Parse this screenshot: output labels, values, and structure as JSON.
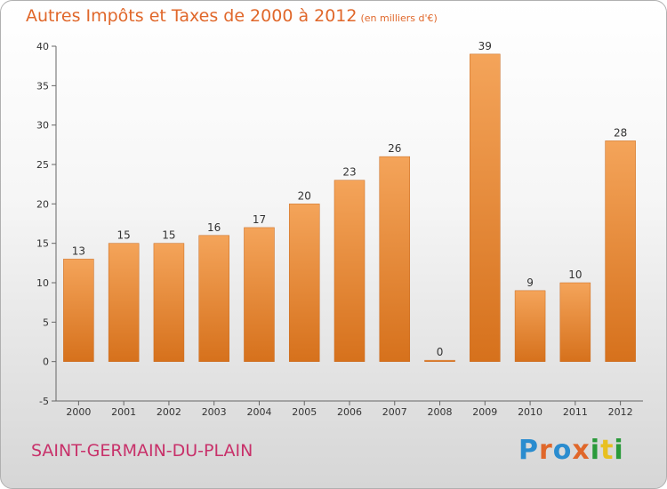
{
  "title": "Autres Impôts et Taxes de 2000 à 2012",
  "title_unit": "(en milliers d'€)",
  "city": "SAINT-GERMAIN-DU-PLAIN",
  "logo": "Proxiti",
  "colors": {
    "title": "#e0672a",
    "city": "#c8316a",
    "bar_light": "#f4a45a",
    "bar_dark": "#d9741f"
  },
  "chart_data": {
    "type": "bar",
    "title": "Autres Impôts et Taxes de 2000 à 2012",
    "categories": [
      "2000",
      "2001",
      "2002",
      "2003",
      "2004",
      "2005",
      "2006",
      "2007",
      "2008",
      "2009",
      "2010",
      "2011",
      "2012"
    ],
    "values": [
      13,
      15,
      15,
      16,
      17,
      20,
      23,
      26,
      0,
      39,
      9,
      10,
      28
    ],
    "ylim": [
      -5,
      40
    ],
    "yticks": [
      -5,
      0,
      5,
      10,
      15,
      20,
      25,
      30,
      35,
      40
    ],
    "grid": false,
    "legend": "none"
  }
}
